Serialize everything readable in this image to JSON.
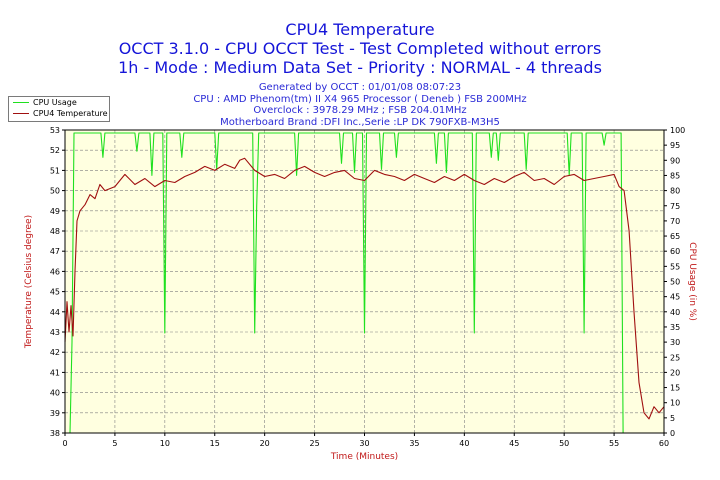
{
  "title": "CPU4 Temperature",
  "subtitle": "OCCT 3.1.0 - CPU OCCT Test - Test Completed without errors",
  "subtitle2": "1h - Mode : Medium Data Set - Priority : NORMAL - 4 threads",
  "info": {
    "generated": "Generated by OCCT : 01/01/08 08:07:23",
    "cpu": "CPU : AMD Phenom(tm) II X4 965 Processor ( Deneb ) FSB 200MHz",
    "overclock": "Overclock : 3978.29 MHz ; FSB 204.01MHz",
    "motherboard": "Motherboard Brand :DFI Inc.,Serie :LP DK 790FXB-M3H5"
  },
  "legend": {
    "cpu_usage": "CPU Usage",
    "cpu_temp": "CPU4 Temperature"
  },
  "colors": {
    "plot_bg": "#ffffe0",
    "usage": "#1fe01f",
    "temp": "#a01010",
    "grid": "#808080"
  },
  "chart_data": {
    "type": "line",
    "title": "CPU4 Temperature",
    "xlabel": "Time (Minutes)",
    "ylabel": "Temperature (Celsius degree)",
    "y2label": "CPU Usage (in %)",
    "xlim": [
      0,
      60
    ],
    "ylim": [
      38,
      53
    ],
    "y2lim": [
      0,
      100
    ],
    "xticks": [
      0,
      5,
      10,
      15,
      20,
      25,
      30,
      35,
      40,
      45,
      50,
      55,
      60
    ],
    "yticks": [
      38,
      39,
      40,
      41,
      42,
      43,
      44,
      45,
      46,
      47,
      48,
      49,
      50,
      51,
      52,
      53
    ],
    "y2ticks": [
      0,
      5,
      10,
      15,
      20,
      25,
      30,
      35,
      40,
      45,
      50,
      55,
      60,
      65,
      70,
      75,
      80,
      85,
      90,
      95,
      100
    ],
    "grid": true,
    "series": [
      {
        "name": "CPU Usage",
        "axis": "right",
        "x": [
          0.0,
          0.3,
          0.5,
          0.7,
          0.9,
          1.1,
          2.0,
          3.6,
          3.8,
          4.0,
          7.0,
          7.2,
          7.4,
          8.5,
          8.7,
          8.9,
          9.8,
          10.0,
          10.2,
          11.5,
          11.7,
          11.9,
          15.0,
          15.2,
          15.4,
          18.8,
          19.0,
          19.2,
          19.4,
          23.0,
          23.2,
          23.4,
          27.5,
          27.7,
          27.9,
          28.8,
          29.0,
          29.2,
          29.8,
          30.0,
          30.2,
          31.5,
          31.7,
          31.9,
          33.0,
          33.2,
          33.4,
          37.0,
          37.2,
          37.4,
          38.0,
          38.2,
          38.4,
          40.8,
          41.0,
          41.2,
          42.5,
          42.7,
          42.9,
          43.2,
          43.4,
          43.6,
          46.0,
          46.2,
          46.4,
          50.3,
          50.5,
          50.7,
          51.8,
          52.0,
          52.2,
          53.8,
          54.0,
          54.2,
          55.7,
          55.9,
          56.1,
          60.0
        ],
        "values": [
          0,
          0,
          0,
          30,
          99,
          99,
          99,
          99,
          91,
          99,
          99,
          93,
          99,
          99,
          85,
          99,
          99,
          33,
          99,
          99,
          91,
          99,
          99,
          87,
          99,
          99,
          33,
          75,
          99,
          99,
          85,
          99,
          99,
          89,
          99,
          99,
          86,
          99,
          99,
          33,
          99,
          99,
          87,
          99,
          99,
          91,
          99,
          99,
          89,
          99,
          99,
          86,
          99,
          99,
          33,
          99,
          99,
          91,
          99,
          99,
          90,
          99,
          99,
          87,
          99,
          99,
          85,
          99,
          99,
          33,
          99,
          99,
          95,
          99,
          99,
          0,
          0,
          0
        ]
      },
      {
        "name": "CPU4 Temperature",
        "axis": "left",
        "x": [
          0.0,
          0.2,
          0.4,
          0.6,
          0.8,
          1.0,
          1.2,
          1.5,
          2.0,
          2.5,
          3.0,
          3.5,
          4.0,
          5.0,
          6.0,
          7.0,
          8.0,
          9.0,
          10.0,
          11.0,
          12.0,
          13.0,
          14.0,
          15.0,
          16.0,
          17.0,
          17.5,
          18.0,
          19.0,
          20.0,
          21.0,
          22.0,
          23.0,
          24.0,
          25.0,
          26.0,
          27.0,
          28.0,
          29.0,
          30.0,
          31.0,
          32.0,
          33.0,
          34.0,
          35.0,
          36.0,
          37.0,
          38.0,
          39.0,
          40.0,
          41.0,
          42.0,
          43.0,
          44.0,
          45.0,
          46.0,
          47.0,
          48.0,
          49.0,
          50.0,
          51.0,
          52.0,
          53.0,
          54.0,
          55.0,
          55.5,
          56.0,
          56.5,
          57.0,
          57.5,
          58.0,
          58.5,
          59.0,
          59.5,
          60.0
        ],
        "values": [
          42.5,
          44.5,
          43.0,
          44.3,
          42.8,
          46.0,
          48.5,
          49.0,
          49.3,
          49.8,
          49.6,
          50.3,
          50.0,
          50.2,
          50.8,
          50.3,
          50.6,
          50.2,
          50.5,
          50.4,
          50.7,
          50.9,
          51.2,
          51.0,
          51.3,
          51.1,
          51.5,
          51.6,
          51.0,
          50.7,
          50.8,
          50.6,
          51.0,
          51.2,
          50.9,
          50.7,
          50.9,
          51.0,
          50.6,
          50.5,
          51.0,
          50.8,
          50.7,
          50.5,
          50.8,
          50.6,
          50.4,
          50.7,
          50.5,
          50.8,
          50.5,
          50.3,
          50.6,
          50.4,
          50.7,
          50.9,
          50.5,
          50.6,
          50.3,
          50.7,
          50.8,
          50.5,
          50.6,
          50.7,
          50.8,
          50.2,
          50.0,
          48.0,
          44.0,
          40.5,
          39.0,
          38.7,
          39.3,
          39.0,
          39.3
        ]
      }
    ]
  }
}
